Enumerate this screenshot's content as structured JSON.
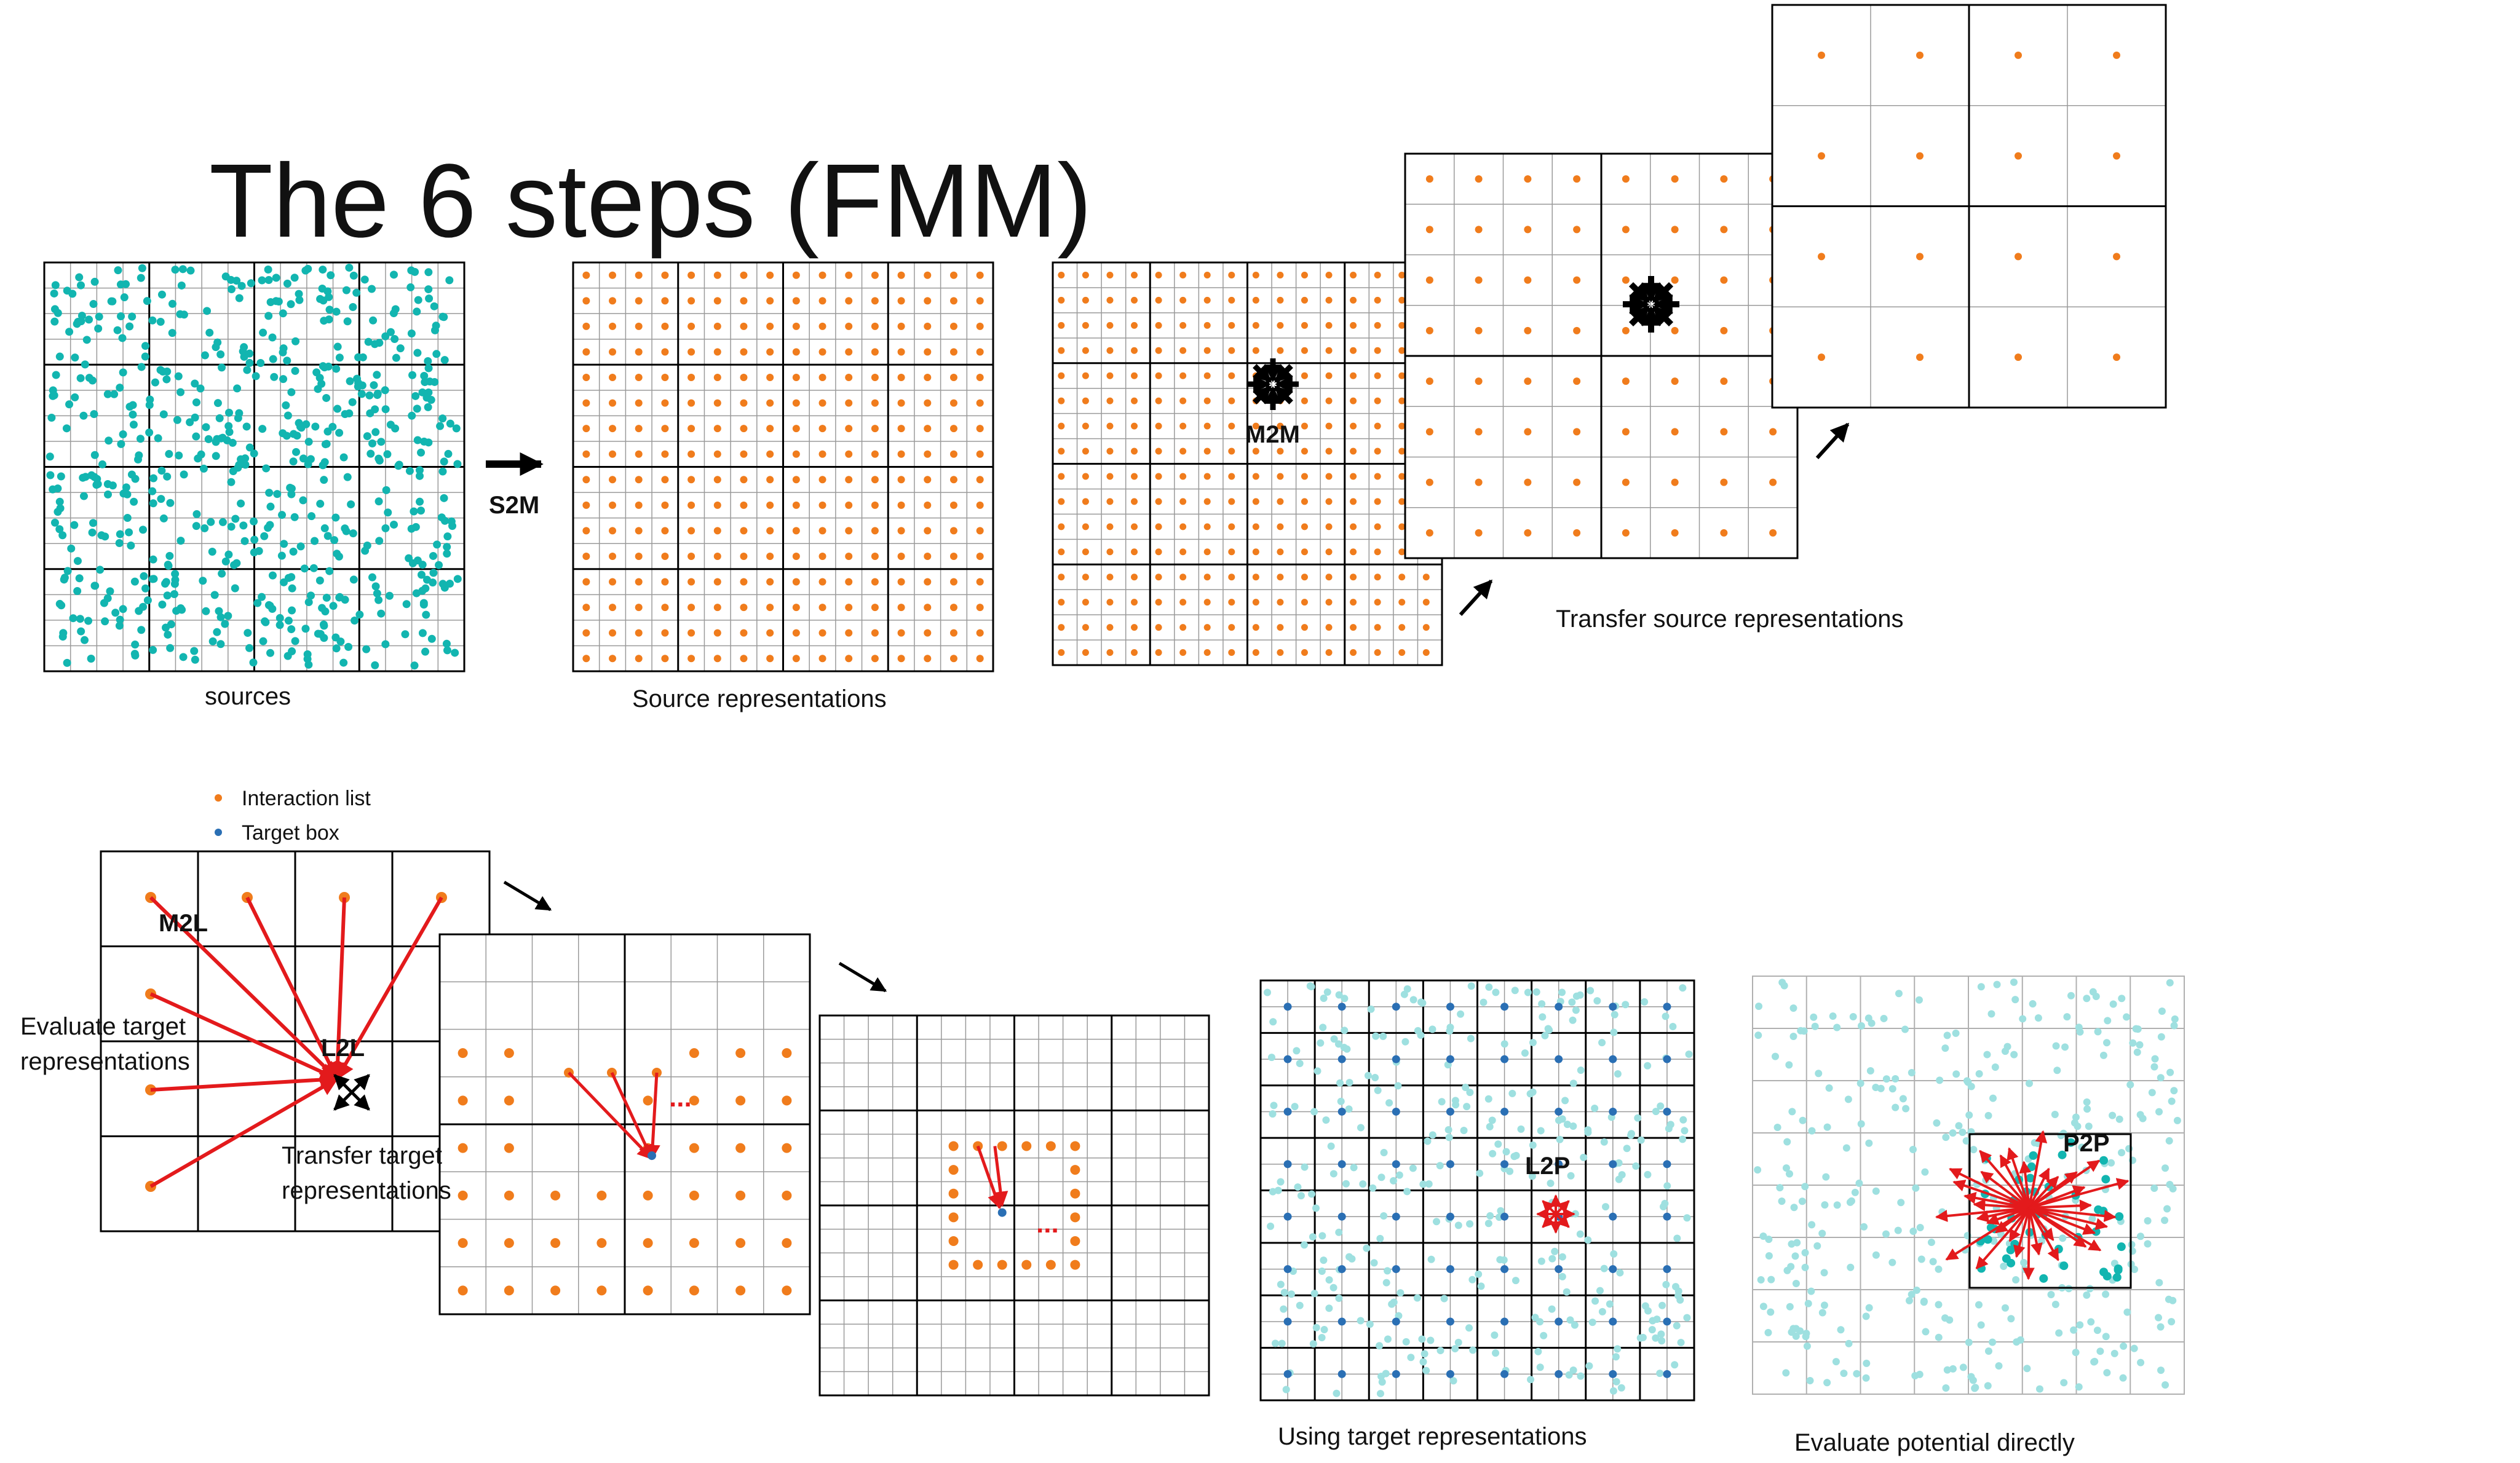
{
  "slide": {
    "title": "The 6 steps (FMM)"
  },
  "colors": {
    "source_points": "#12b5b0",
    "source_points_light": "#9ee0e0",
    "representation_points": "#f07c1c",
    "target_box_points": "#2a6fb4",
    "interaction_arrows": "#e31a1c",
    "grid_lines": "#000000"
  },
  "top_row": {
    "sources_caption": "sources",
    "s2m_label": "S2M",
    "source_representations_caption": "Source representations",
    "m2m_label": "M2M",
    "transfer_caption": "Transfer source representations"
  },
  "legend": {
    "interaction_list": "Interaction list",
    "target_box": "Target box"
  },
  "bottom_row": {
    "m2l_label": "M2L",
    "l2l_label": "L2L",
    "evaluate_caption_line1": "Evaluate target",
    "evaluate_caption_line2": "representations",
    "transfer_caption_line1": "Transfer target",
    "transfer_caption_line2": "representations",
    "continuation_glyph": "...",
    "l2p_label": "L2P",
    "l2p_caption": "Using target representations",
    "p2p_label": "P2P",
    "p2p_caption": "Evaluate potential directly"
  },
  "icons": [
    "arrow-right-icon",
    "arrow-diagonal-icon",
    "converging-arrows-icon"
  ]
}
